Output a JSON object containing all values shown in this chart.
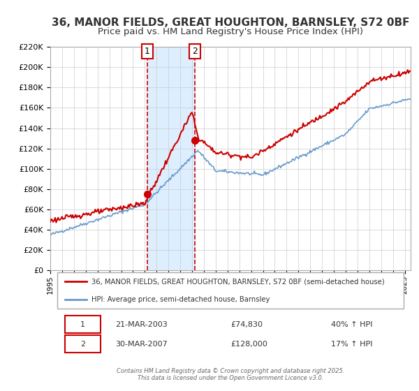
{
  "title": "36, MANOR FIELDS, GREAT HOUGHTON, BARNSLEY, S72 0BF",
  "subtitle": "Price paid vs. HM Land Registry's House Price Index (HPI)",
  "legend_line1": "36, MANOR FIELDS, GREAT HOUGHTON, BARNSLEY, S72 0BF (semi-detached house)",
  "legend_line2": "HPI: Average price, semi-detached house, Barnsley",
  "transaction1_label": "1",
  "transaction1_date": "21-MAR-2003",
  "transaction1_price": "£74,830",
  "transaction1_hpi": "40% ↑ HPI",
  "transaction2_label": "2",
  "transaction2_date": "30-MAR-2007",
  "transaction2_price": "£128,000",
  "transaction2_hpi": "17% ↑ HPI",
  "footnote": "Contains HM Land Registry data © Crown copyright and database right 2025.\nThis data is licensed under the Open Government Licence v3.0.",
  "property_color": "#cc0000",
  "hpi_color": "#6699cc",
  "background_color": "#ffffff",
  "plot_bg_color": "#ffffff",
  "grid_color": "#cccccc",
  "highlight_color": "#ddeeff",
  "ylim": [
    0,
    220000
  ],
  "yticks": [
    0,
    20000,
    40000,
    60000,
    80000,
    100000,
    120000,
    140000,
    160000,
    180000,
    200000,
    220000
  ],
  "xlim_start": 1995.0,
  "xlim_end": 2025.5,
  "transaction1_x": 2003.22,
  "transaction1_y": 74830,
  "transaction2_x": 2007.24,
  "transaction2_y": 128000,
  "title_fontsize": 11,
  "subtitle_fontsize": 9.5
}
